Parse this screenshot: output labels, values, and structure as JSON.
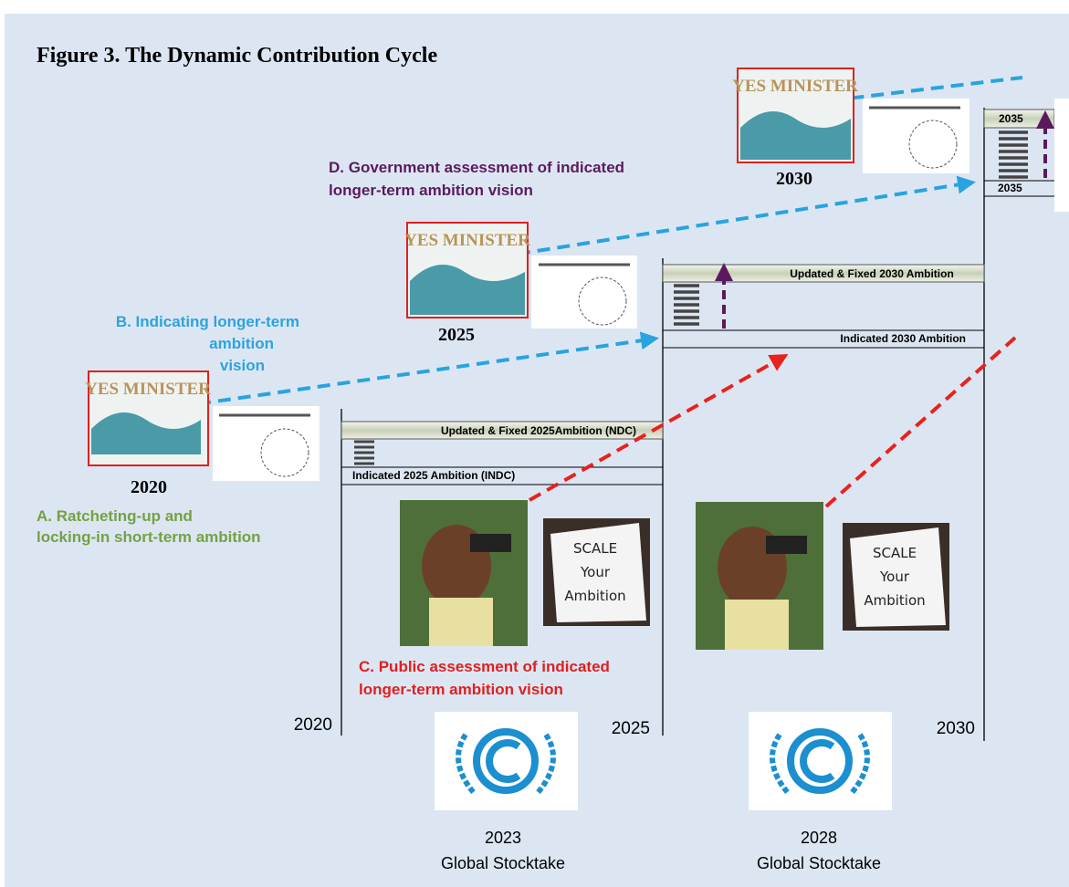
{
  "title": "Figure 3. The Dynamic Contribution Cycle",
  "annotations": [
    {
      "lines": [
        "A. Ratcheting-up and",
        "locking-in short-term ambition"
      ]
    },
    {
      "lines": [
        "B. Indicating longer-term",
        "ambition",
        "vision"
      ]
    },
    {
      "lines": [
        "C. Public assessment of indicated",
        "longer-term ambition vision"
      ]
    },
    {
      "lines": [
        "D. Government  assessment of indicated",
        "longer-term ambition vision"
      ]
    }
  ],
  "cartoons": [
    {
      "caption": "YES MINISTER",
      "year": "2020"
    },
    {
      "caption": "YES MINISTER",
      "year": "2025"
    },
    {
      "caption": "YES MINISTER",
      "year": "2030"
    }
  ],
  "ambition_bars": [
    {
      "updated": "Updated & Fixed 2025Ambition (NDC)",
      "indicated": "Indicated 2025 Ambition (INDC)"
    },
    {
      "updated": "Updated & Fixed 2030 Ambition",
      "indicated": "Indicated 2030 Ambition"
    },
    {
      "updated": "2035",
      "indicated": "2035"
    }
  ],
  "signs": [
    {
      "lines": [
        "SCALE",
        "Your",
        "Ambition"
      ]
    },
    {
      "lines": [
        "SCALE",
        "Your",
        "Ambition"
      ]
    }
  ],
  "timeline": [
    "2020",
    "2025",
    "2030"
  ],
  "stocktakes": [
    {
      "year": "2023",
      "label": "Global Stocktake"
    },
    {
      "year": "2028",
      "label": "Global Stocktake"
    }
  ]
}
